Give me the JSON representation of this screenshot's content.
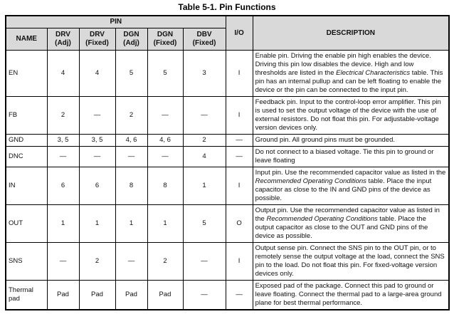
{
  "page": {
    "title": "Table 5-1. Pin Functions"
  },
  "colors": {
    "header_bg": "#d9d9d9",
    "border": "#000000",
    "text": "#111111"
  },
  "table": {
    "pin_group_label": "PIN",
    "columns": {
      "name": "NAME",
      "pin_types": [
        "DRV\n(Adj)",
        "DRV\n(Fixed)",
        "DGN\n(Adj)",
        "DGN\n(Fixed)",
        "DBV\n(Fixed)"
      ],
      "io": "I/O",
      "description": "DESCRIPTION"
    },
    "rows": [
      {
        "name": "EN",
        "pins": [
          "4",
          "4",
          "5",
          "5",
          "3"
        ],
        "io": "I",
        "description": [
          {
            "t": "Enable pin. Driving the enable pin high enables the device. Driving this pin low disables the device. High and low thresholds are listed in the "
          },
          {
            "t": "Electrical Characteristics",
            "i": true
          },
          {
            "t": " table. This pin has an internal pullup and can be left floating to enable the device or the pin can be connected to the input pin."
          }
        ]
      },
      {
        "name": "FB",
        "pins": [
          "2",
          "—",
          "2",
          "—",
          "—"
        ],
        "io": "I",
        "description": [
          {
            "t": "Feedback pin. Input to the control-loop error amplifier. This pin is used to set the output voltage of the device with the use of external resistors. Do not float this pin. For adjustable-voltage version devices only."
          }
        ]
      },
      {
        "name": "GND",
        "pins": [
          "3, 5",
          "3, 5",
          "4, 6",
          "4, 6",
          "2"
        ],
        "io": "—",
        "description": [
          {
            "t": "Ground pin. All ground pins must be grounded."
          }
        ]
      },
      {
        "name": "DNC",
        "pins": [
          "—",
          "—",
          "—",
          "—",
          "4"
        ],
        "io": "—",
        "description": [
          {
            "t": "Do not connect to a biased voltage. Tie this pin to ground or leave floating"
          }
        ]
      },
      {
        "name": "IN",
        "pins": [
          "6",
          "6",
          "8",
          "8",
          "1"
        ],
        "io": "I",
        "description": [
          {
            "t": "Input pin. Use the recommended capacitor value as listed in the "
          },
          {
            "t": "Recommended Operating Conditions",
            "i": true
          },
          {
            "t": " table. Place the input capacitor as close to the IN and GND pins of the device as possible."
          }
        ]
      },
      {
        "name": "OUT",
        "pins": [
          "1",
          "1",
          "1",
          "1",
          "5"
        ],
        "io": "O",
        "description": [
          {
            "t": "Output pin. Use the recommended capacitor value as listed in the "
          },
          {
            "t": "Recommended Operating Conditions",
            "i": true
          },
          {
            "t": " table. Place the output capacitor as close to the OUT and GND pins of the device as possible."
          }
        ]
      },
      {
        "name": "SNS",
        "pins": [
          "—",
          "2",
          "—",
          "2",
          "—"
        ],
        "io": "I",
        "description": [
          {
            "t": "Output sense pin. Connect the SNS pin to the OUT pin, or to remotely sense the output voltage at the load, connect the SNS pin to the load. Do not float this pin. For fixed-voltage version devices only."
          }
        ]
      },
      {
        "name": "Thermal pad",
        "pins": [
          "Pad",
          "Pad",
          "Pad",
          "Pad",
          "—"
        ],
        "io": "—",
        "description": [
          {
            "t": "Exposed pad of the package. Connect this pad to ground or leave floating. Connect the thermal pad to a large-area ground plane for best thermal performance."
          }
        ]
      }
    ]
  }
}
